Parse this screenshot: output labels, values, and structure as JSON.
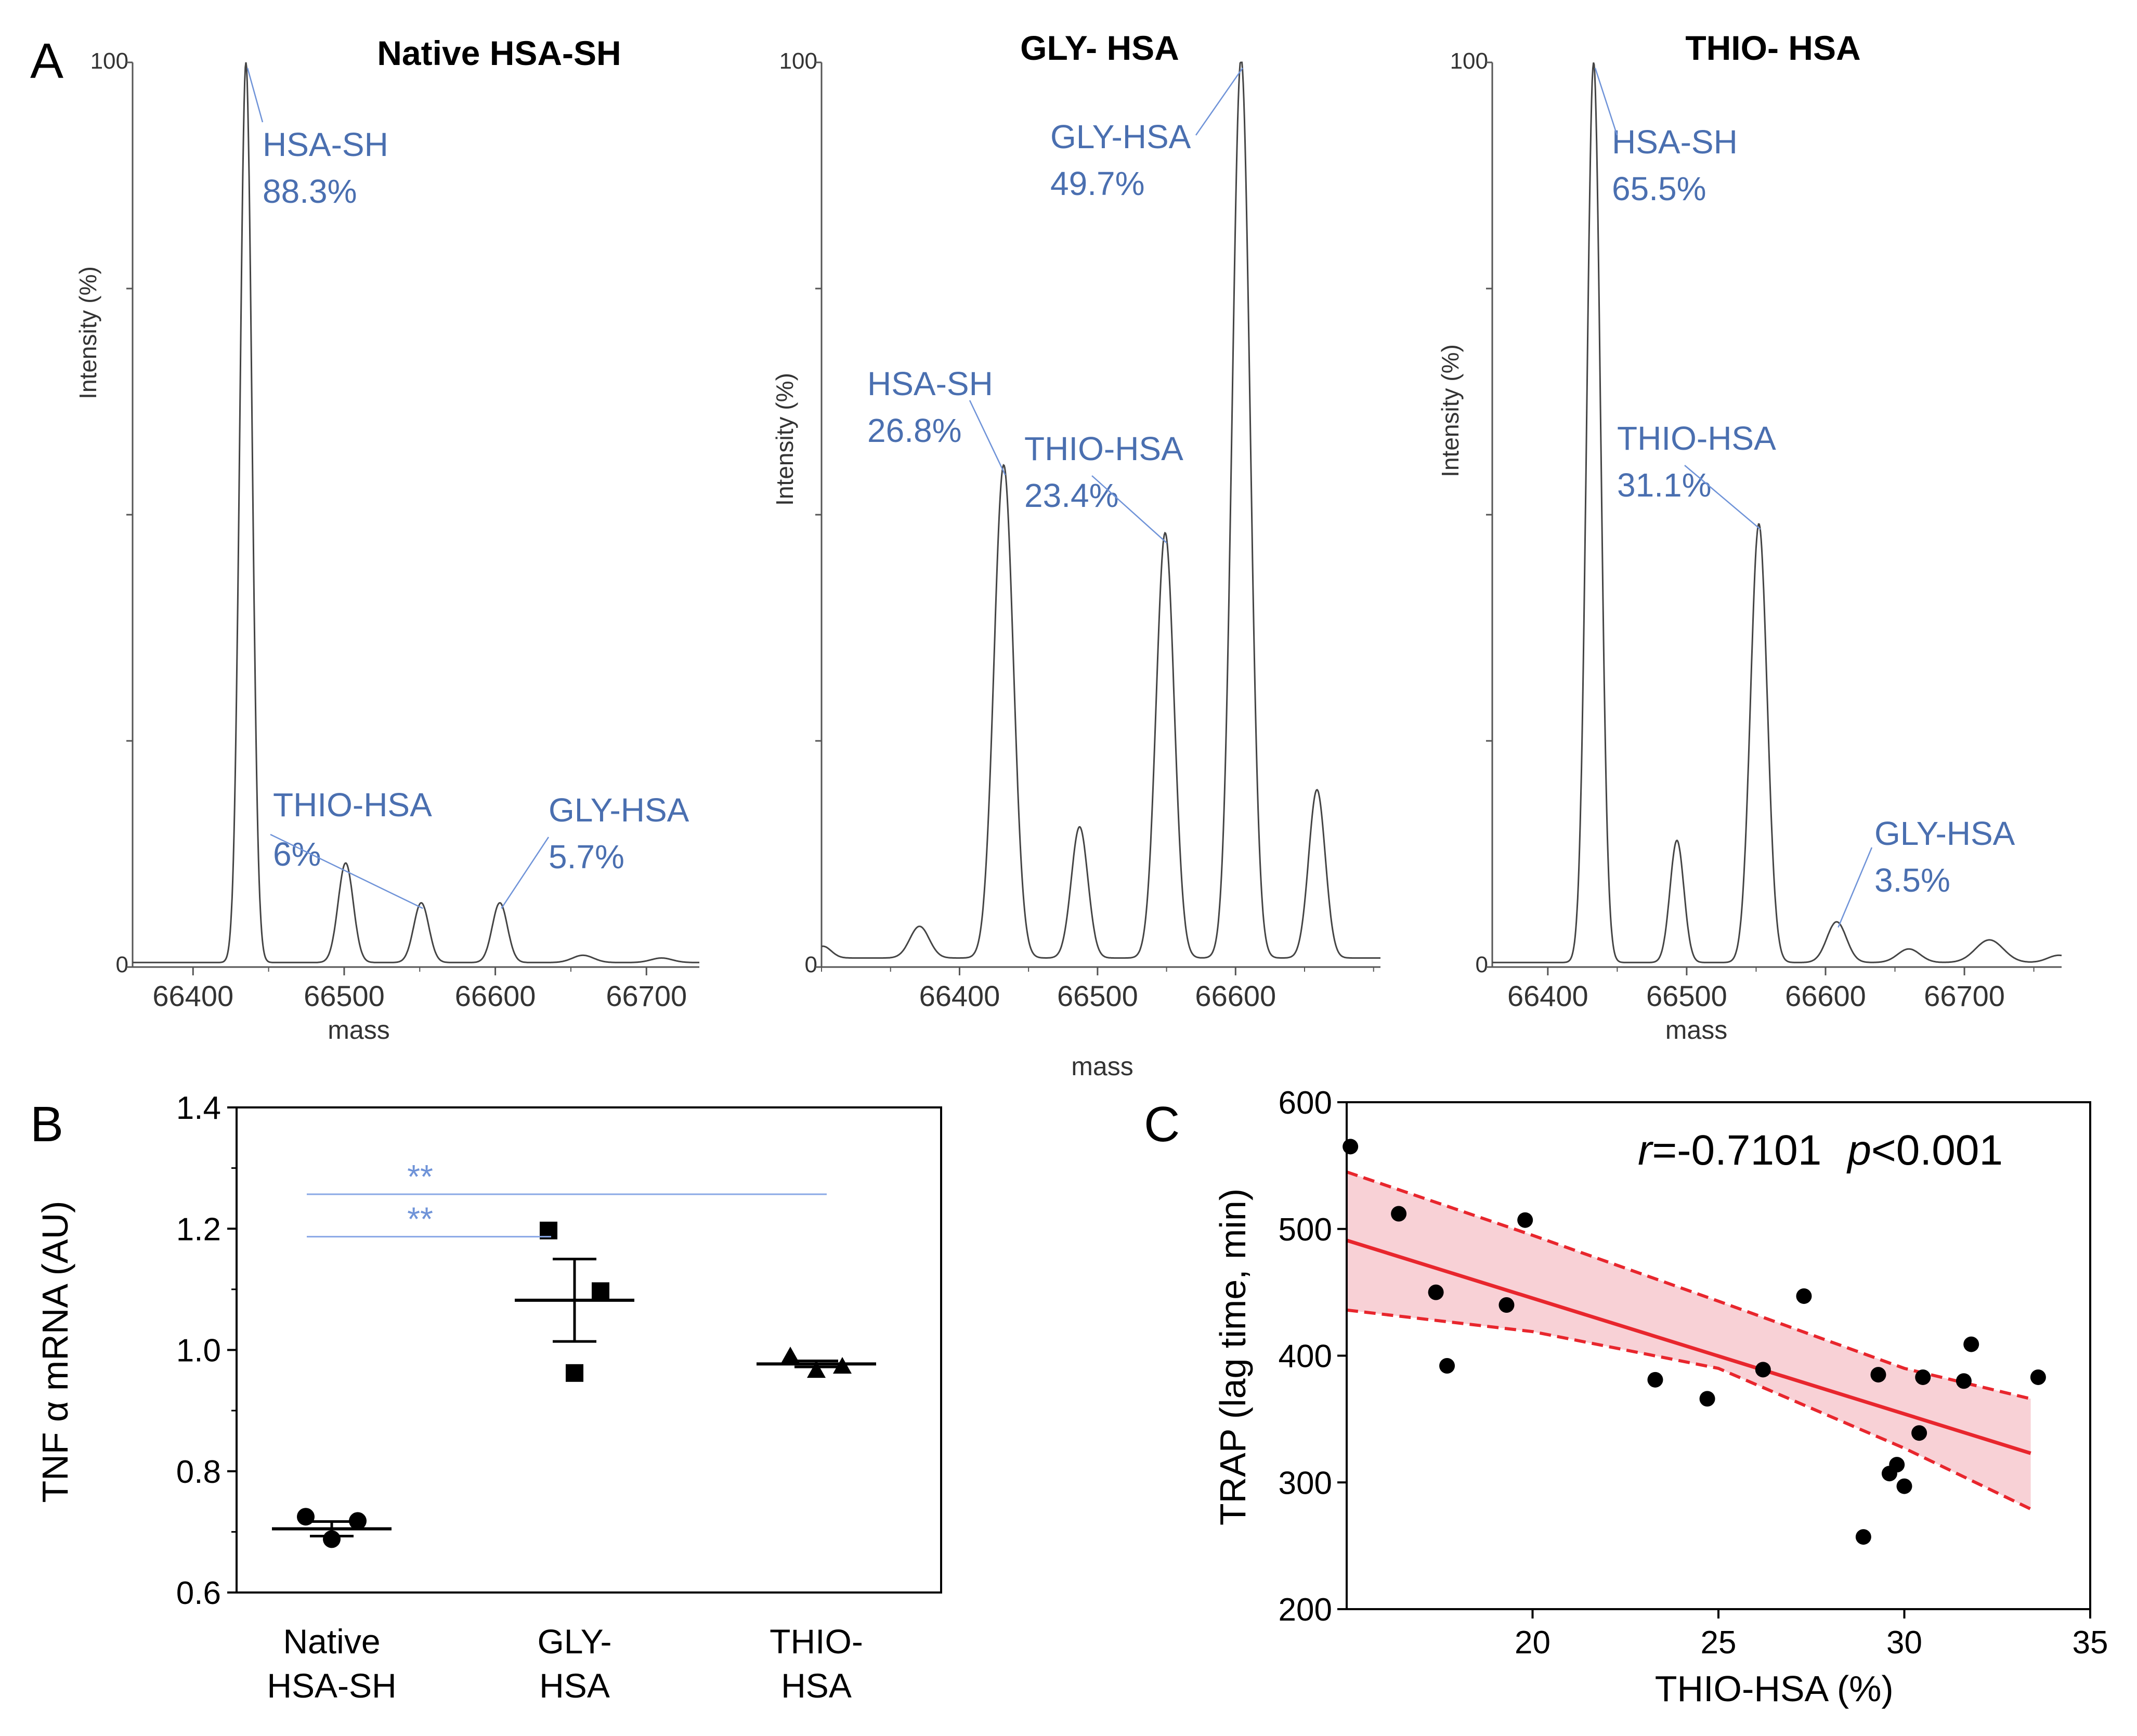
{
  "panel_letters": {
    "a": "A",
    "b": "B",
    "c": "C"
  },
  "chart_data": [
    {
      "id": "native",
      "type": "line",
      "title": "Native HSA-SH",
      "xlabel": "mass",
      "ylabel": "Intensity (%)",
      "xlim": [
        66360,
        66735
      ],
      "ylim": [
        0,
        100
      ],
      "xticks": [
        66400,
        66500,
        66600,
        66700
      ],
      "ytick_labels": [
        "0",
        "100"
      ],
      "baseline": 0.5,
      "peaks": [
        {
          "mass": 66435,
          "height": 99.5,
          "width": 4
        },
        {
          "mass": 66501,
          "height": 11,
          "width": 5
        },
        {
          "mass": 66551,
          "height": 6.6,
          "width": 5
        },
        {
          "mass": 66603,
          "height": 6.6,
          "width": 5
        },
        {
          "mass": 66658,
          "height": 0.8,
          "width": 7
        },
        {
          "mass": 66710,
          "height": 0.5,
          "width": 7
        }
      ],
      "annotations": [
        {
          "label": "HSA-SH",
          "value": "88.3%",
          "mass": 66435,
          "height": 99.5
        },
        {
          "label": "THIO-HSA",
          "value": "6%",
          "mass": 66551,
          "height": 6.6
        },
        {
          "label": "GLY-HSA",
          "value": "5.7%",
          "mass": 66603,
          "height": 6.6
        }
      ]
    },
    {
      "id": "gly",
      "type": "line",
      "title": "GLY- HSA",
      "xlabel": "mass",
      "ylabel": "Intensity (%)",
      "xlim": [
        66300,
        66705
      ],
      "ylim": [
        0,
        100
      ],
      "xticks": [
        66400,
        66500,
        66600
      ],
      "ytick_labels": [
        "0",
        "100"
      ],
      "baseline": 1,
      "peaks": [
        {
          "mass": 66301,
          "height": 1.3,
          "width": 6
        },
        {
          "mass": 66371,
          "height": 3.5,
          "width": 7
        },
        {
          "mass": 66432,
          "height": 54.5,
          "width": 7
        },
        {
          "mass": 66487,
          "height": 14.5,
          "width": 6
        },
        {
          "mass": 66549,
          "height": 47,
          "width": 6.5
        },
        {
          "mass": 66604,
          "height": 99.5,
          "width": 6.5
        },
        {
          "mass": 66659,
          "height": 18.6,
          "width": 6
        }
      ],
      "annotations": [
        {
          "label": "HSA-SH",
          "value": "26.8%",
          "mass": 66432,
          "height": 54.5
        },
        {
          "label": "THIO-HSA",
          "value": "23.4%",
          "mass": 66549,
          "height": 47
        },
        {
          "label": "GLY-HSA",
          "value": "49.7%",
          "mass": 66604,
          "height": 99.5
        }
      ]
    },
    {
      "id": "thio",
      "type": "line",
      "title": "THIO- HSA",
      "xlabel": "mass",
      "ylabel": "Intensity (%)",
      "xlim": [
        66360,
        66770
      ],
      "ylim": [
        0,
        100
      ],
      "xticks": [
        66400,
        66500,
        66600,
        66700
      ],
      "ytick_labels": [
        "0",
        "100"
      ],
      "baseline": 0.5,
      "peaks": [
        {
          "mass": 66433,
          "height": 99.5,
          "width": 5
        },
        {
          "mass": 66493,
          "height": 13.5,
          "width": 5
        },
        {
          "mass": 66552,
          "height": 48.5,
          "width": 6
        },
        {
          "mass": 66608,
          "height": 4.5,
          "width": 7
        },
        {
          "mass": 66660,
          "height": 1.5,
          "width": 8
        },
        {
          "mass": 66718,
          "height": 2.5,
          "width": 10
        },
        {
          "mass": 66768,
          "height": 0.8,
          "width": 8
        }
      ],
      "annotations": [
        {
          "label": "HSA-SH",
          "value": "65.5%",
          "mass": 66433,
          "height": 99.5
        },
        {
          "label": "THIO-HSA",
          "value": "31.1%",
          "mass": 66552,
          "height": 48.5
        },
        {
          "label": "GLY-HSA",
          "value": "3.5%",
          "mass": 66608,
          "height": 4.5
        }
      ]
    },
    {
      "id": "tnf",
      "type": "scatter",
      "ylabel": "TNF α mRNA (AU)",
      "ylim": [
        0.6,
        1.4
      ],
      "yticks": [
        0.6,
        0.8,
        1.0,
        1.2,
        1.4
      ],
      "ytick_labels": [
        "0.6",
        "0.8",
        "1.0",
        "1.2",
        "1.4"
      ],
      "groups": [
        {
          "line1": "Native",
          "line2": "HSA-SH",
          "marker": "circle",
          "points": [
            0.725,
            0.718,
            0.688
          ],
          "mean": 0.705,
          "sem": 0.012
        },
        {
          "line1": "GLY-",
          "line2": "HSA",
          "marker": "square",
          "points": [
            1.197,
            1.097,
            0.962
          ],
          "mean": 1.082,
          "sem": 0.068
        },
        {
          "line1": "THIO-",
          "line2": "HSA",
          "marker": "triangle",
          "points": [
            0.99,
            0.973,
            0.966
          ],
          "mean": 0.977,
          "sem": 0.005
        }
      ],
      "significance": [
        {
          "label": "**",
          "from": 0,
          "to": 2,
          "level": 1.31
        },
        {
          "label": "**",
          "from": 0,
          "to": 1,
          "level": 1.24
        }
      ]
    },
    {
      "id": "trap",
      "type": "scatter",
      "xlabel": "THIO-HSA (%)",
      "ylabel": "TRAP (lag time, min)",
      "xlim": [
        15,
        35
      ],
      "ylim": [
        200,
        600
      ],
      "xticks": [
        20,
        25,
        30,
        35
      ],
      "yticks": [
        200,
        300,
        400,
        500,
        600
      ],
      "annotation": {
        "r_symbol": "r",
        "r_value": "=-0.7101",
        "p_symbol": "p",
        "p_value": "<0.001"
      },
      "points": [
        [
          15.1,
          565
        ],
        [
          16.4,
          512
        ],
        [
          17.4,
          450
        ],
        [
          17.7,
          392
        ],
        [
          19.3,
          440
        ],
        [
          19.8,
          507
        ],
        [
          23.3,
          381
        ],
        [
          24.7,
          366
        ],
        [
          26.2,
          389
        ],
        [
          27.3,
          447
        ],
        [
          28.9,
          257
        ],
        [
          29.3,
          385
        ],
        [
          29.6,
          307
        ],
        [
          29.8,
          314
        ],
        [
          30.0,
          297
        ],
        [
          30.4,
          339
        ],
        [
          30.5,
          383
        ],
        [
          31.6,
          380
        ],
        [
          31.8,
          409
        ],
        [
          33.6,
          383
        ]
      ],
      "fit": {
        "x0": 15.0,
        "y0": 491,
        "x1": 33.4,
        "y1": 323
      },
      "band_upper": [
        [
          15.0,
          545
        ],
        [
          20.0,
          495
        ],
        [
          25.0,
          443
        ],
        [
          30.0,
          390
        ],
        [
          33.4,
          366
        ]
      ],
      "band_lower": [
        [
          15.0,
          436
        ],
        [
          20.0,
          419
        ],
        [
          25.0,
          390
        ],
        [
          30.0,
          327
        ],
        [
          33.4,
          279
        ]
      ]
    }
  ]
}
